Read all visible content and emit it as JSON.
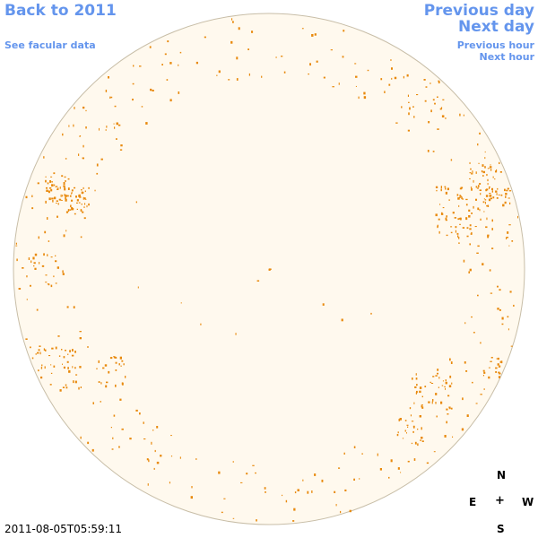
{
  "nav": {
    "back": "Back to 2011",
    "facular": "See facular data",
    "prev_day": "Previous day",
    "next_day": "Next day",
    "prev_hour": "Previous hour",
    "next_hour": "Next hour"
  },
  "compass": {
    "north": "N",
    "east": "E",
    "center": "+",
    "west": "W",
    "south": "S"
  },
  "timestamp": "2011-08-05T05:59:11",
  "colors": {
    "link": "#6495ed",
    "disk_fill": "#fff9ee",
    "disk_stroke": "#c8bea8",
    "facula": "#e8890c"
  }
}
